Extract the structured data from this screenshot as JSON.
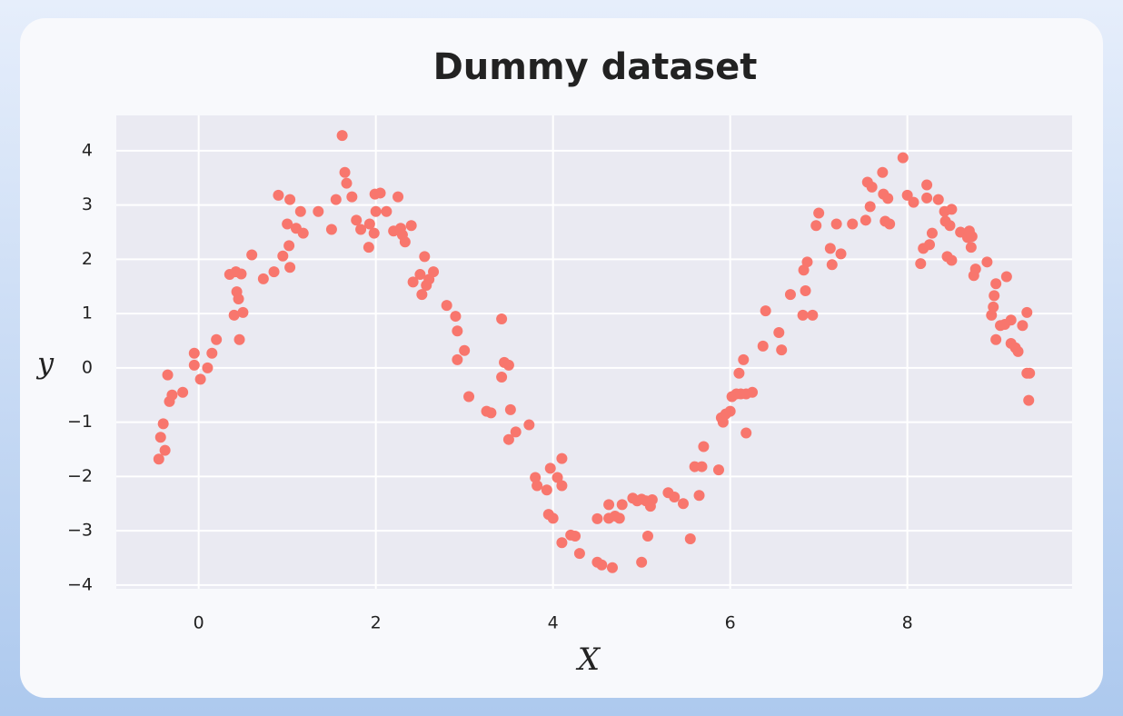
{
  "chart_data": {
    "type": "scatter",
    "title": "Dummy dataset",
    "x_label": "X",
    "y_label": "y",
    "color": "#f8766d",
    "grid": true,
    "xlim": [
      -0.93,
      9.86
    ],
    "ylim": [
      -4.07,
      4.65
    ],
    "xticks": [
      0,
      2,
      4,
      6,
      8
    ],
    "yticks": [
      {
        "value": -4,
        "label": "−4"
      },
      {
        "value": -3,
        "label": "−3"
      },
      {
        "value": -2,
        "label": "−2"
      },
      {
        "value": -1,
        "label": "−1"
      },
      0,
      1,
      2,
      3,
      4
    ],
    "x": [
      -0.45,
      -0.43,
      -0.4,
      -0.38,
      -0.35,
      -0.33,
      -0.3,
      -0.18,
      -0.05,
      -0.05,
      0.02,
      0.1,
      0.15,
      0.2,
      0.35,
      0.4,
      0.42,
      0.43,
      0.45,
      0.46,
      0.48,
      0.5,
      0.6,
      0.73,
      0.85,
      0.9,
      0.95,
      1.0,
      1.02,
      1.03,
      1.03,
      1.1,
      1.15,
      1.18,
      1.35,
      1.5,
      1.55,
      1.62,
      1.65,
      1.67,
      1.73,
      1.78,
      1.83,
      1.92,
      1.93,
      1.98,
      1.99,
      2.0,
      2.05,
      2.12,
      2.2,
      2.25,
      2.28,
      2.3,
      2.33,
      2.4,
      2.42,
      2.5,
      2.52,
      2.55,
      2.57,
      2.6,
      2.65,
      2.8,
      2.9,
      2.92,
      2.92,
      3.0,
      3.05,
      3.25,
      3.3,
      3.42,
      3.42,
      3.45,
      3.5,
      3.5,
      3.52,
      3.58,
      3.73,
      3.8,
      3.82,
      3.93,
      3.95,
      3.97,
      4.0,
      4.05,
      4.1,
      4.1,
      4.1,
      4.2,
      4.25,
      4.3,
      4.5,
      4.5,
      4.55,
      4.63,
      4.63,
      4.67,
      4.7,
      4.75,
      4.78,
      4.9,
      4.95,
      5.0,
      5.0,
      5.05,
      5.07,
      5.1,
      5.12,
      5.3,
      5.37,
      5.47,
      5.55,
      5.6,
      5.65,
      5.68,
      5.7,
      5.87,
      5.9,
      5.92,
      5.95,
      6.0,
      6.02,
      6.07,
      6.1,
      6.12,
      6.15,
      6.18,
      6.18,
      6.25,
      6.37,
      6.4,
      6.55,
      6.58,
      6.68,
      6.82,
      6.83,
      6.85,
      6.87,
      6.93,
      6.97,
      7.0,
      7.13,
      7.15,
      7.2,
      7.25,
      7.38,
      7.53,
      7.55,
      7.58,
      7.6,
      7.72,
      7.73,
      7.75,
      7.78,
      7.8,
      7.95,
      8.0,
      8.07,
      8.15,
      8.18,
      8.22,
      8.22,
      8.25,
      8.28,
      8.35,
      8.42,
      8.43,
      8.45,
      8.48,
      8.5,
      8.5,
      8.6,
      8.68,
      8.7,
      8.72,
      8.73,
      8.75,
      8.77,
      8.9,
      8.95,
      8.97,
      8.98,
      9.0,
      9.0,
      9.05,
      9.1,
      9.12,
      9.17,
      9.17,
      9.22,
      9.25,
      9.3,
      9.35,
      9.35,
      9.37,
      9.38
    ],
    "values": [
      -1.68,
      -1.28,
      -1.03,
      -1.52,
      -0.13,
      -0.62,
      -0.5,
      -0.45,
      0.27,
      0.05,
      -0.21,
      0,
      0.27,
      0.52,
      1.72,
      0.97,
      1.77,
      1.4,
      1.27,
      0.52,
      1.73,
      1.02,
      2.08,
      1.64,
      1.77,
      3.18,
      2.06,
      2.65,
      2.25,
      1.85,
      3.1,
      2.57,
      2.88,
      2.48,
      2.88,
      2.55,
      3.1,
      4.28,
      3.6,
      3.4,
      3.15,
      2.72,
      2.55,
      2.22,
      2.65,
      2.48,
      3.2,
      2.88,
      3.22,
      2.88,
      2.52,
      3.15,
      2.57,
      2.45,
      2.32,
      2.62,
      1.58,
      1.72,
      1.35,
      2.05,
      1.52,
      1.63,
      1.77,
      1.15,
      0.95,
      0.68,
      0.15,
      0.32,
      -0.53,
      -0.8,
      -0.83,
      0.9,
      -0.17,
      0.1,
      0.05,
      -1.32,
      -0.77,
      -1.18,
      -1.05,
      -2.02,
      -2.17,
      -2.25,
      -2.7,
      -1.85,
      -2.77,
      -2.02,
      -2.17,
      -1.67,
      -3.22,
      -3.08,
      -3.1,
      -3.42,
      -2.78,
      -3.58,
      -3.63,
      -2.52,
      -2.77,
      -3.68,
      -2.73,
      -2.77,
      -2.52,
      -2.4,
      -2.45,
      -2.42,
      -3.58,
      -2.45,
      -3.1,
      -2.55,
      -2.43,
      -2.3,
      -2.38,
      -2.5,
      -3.15,
      -1.82,
      -2.35,
      -1.82,
      -1.45,
      -1.88,
      -0.92,
      -1.0,
      -0.85,
      -0.8,
      -0.53,
      -0.48,
      -0.1,
      -0.48,
      0.15,
      -0.48,
      -1.2,
      -0.45,
      0.4,
      1.05,
      0.65,
      0.33,
      1.35,
      0.97,
      1.8,
      1.42,
      1.95,
      0.97,
      2.62,
      2.85,
      2.2,
      1.9,
      2.65,
      2.1,
      2.65,
      2.72,
      3.42,
      2.97,
      3.33,
      3.6,
      3.2,
      2.7,
      3.12,
      2.65,
      3.87,
      3.18,
      3.05,
      1.92,
      2.2,
      3.13,
      3.37,
      2.27,
      2.48,
      3.1,
      2.88,
      2.7,
      2.05,
      2.62,
      1.98,
      2.92,
      2.5,
      2.4,
      2.52,
      2.22,
      2.42,
      1.7,
      1.82,
      1.95,
      0.97,
      1.12,
      1.33,
      1.55,
      0.52,
      0.78,
      0.8,
      1.68,
      0.88,
      0.45,
      0.37,
      0.3,
      0.78,
      1.02,
      -0.1,
      -0.6,
      -0.1
    ]
  }
}
